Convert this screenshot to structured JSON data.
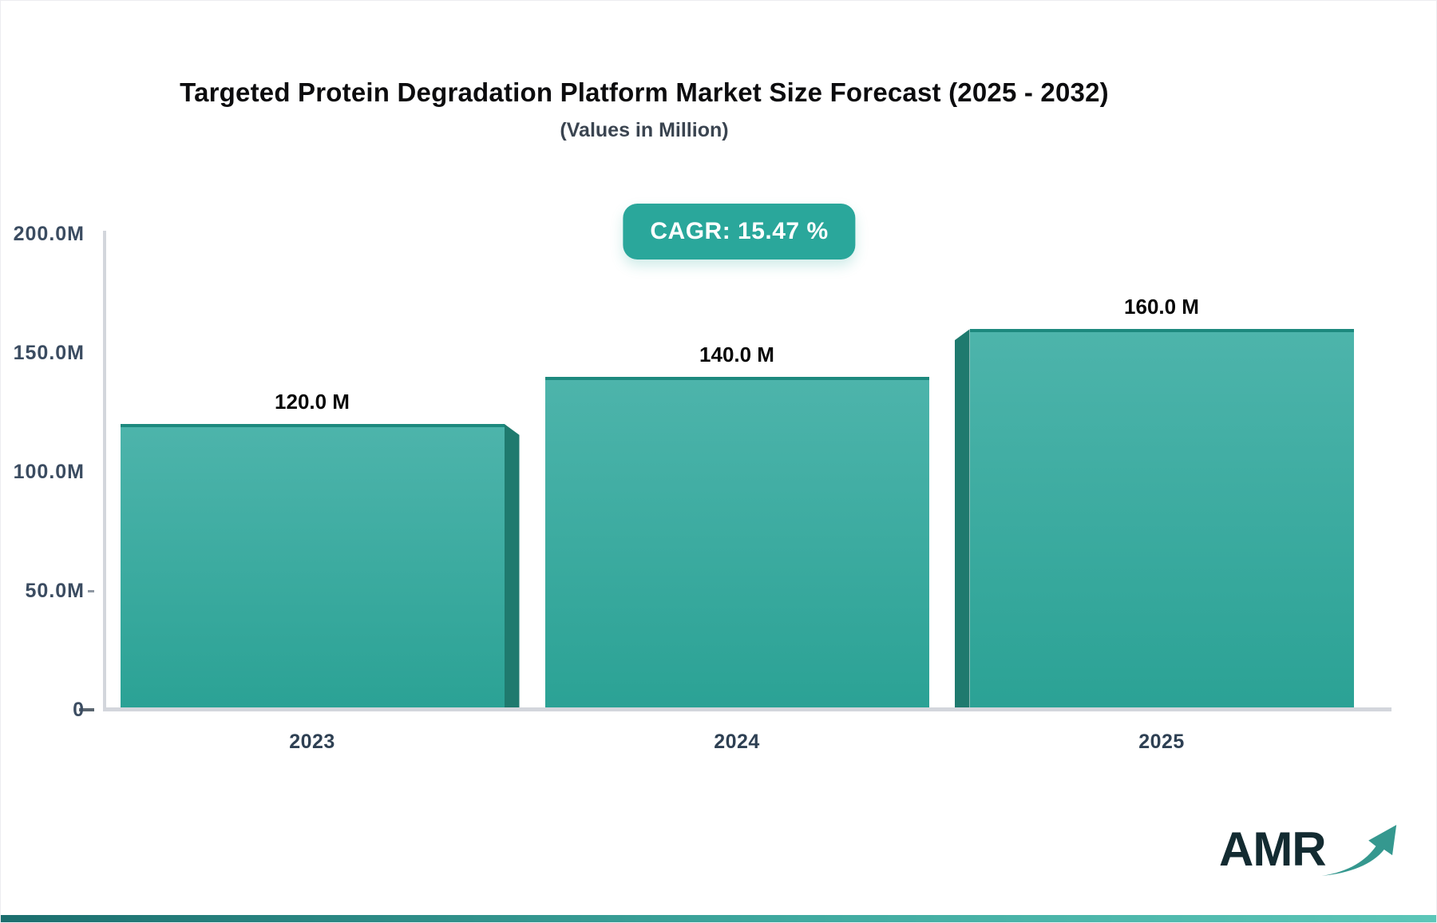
{
  "badge": {
    "label": "CAGR: 15.47 %"
  },
  "logo": {
    "text": "AMR",
    "arrow_icon": "growth-arrow-icon"
  },
  "colors": {
    "badge_bg": "#2aa79b",
    "bar_face_top": "#4db4ab",
    "bar_face_bottom": "#2ba295",
    "bar_top_edge": "#1d897e",
    "bar_side_panel": "#1f7a6e",
    "axis_line": "#d3d6dc",
    "axis_text": "#3b4c61",
    "strip_left": "#1b6e6e",
    "strip_right": "#5cc6b8"
  },
  "chart_data": {
    "type": "bar",
    "title": "Targeted Protein Degradation Platform Market Size Forecast (2025 - 2032)",
    "subtitle": "(Values in Million)",
    "cagr_pct": 15.47,
    "categories": [
      "2023",
      "2024",
      "2025"
    ],
    "values": [
      120.0,
      140.0,
      160.0
    ],
    "value_labels": [
      "120.0 M",
      "140.0 M",
      "160.0 M"
    ],
    "xlabel": "",
    "ylabel": "",
    "ylim": [
      0,
      200
    ],
    "ytick_values": [
      200,
      150,
      100,
      50,
      0
    ],
    "ytick_labels": [
      "200.0M",
      "150.0M",
      "100.0M",
      "50.0M",
      "0"
    ],
    "grid": false,
    "legend": false,
    "bar_color": "#3aaea1"
  }
}
